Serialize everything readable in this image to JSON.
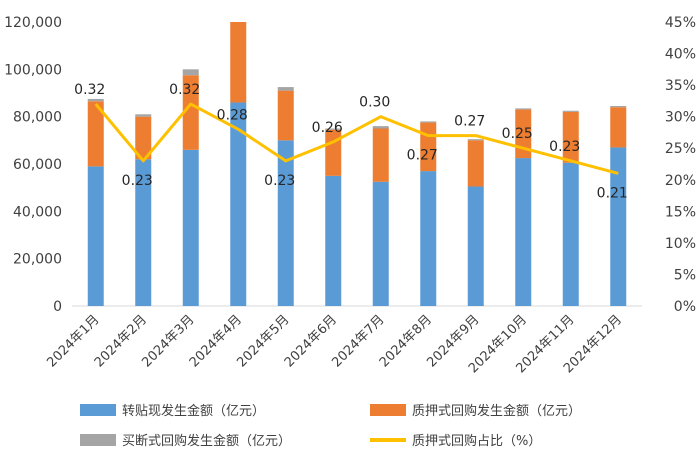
{
  "chart_data": {
    "type": "bar",
    "stacked": true,
    "categories": [
      "2024年1月",
      "2024年2月",
      "2024年3月",
      "2024年4月",
      "2024年5月",
      "2024年6月",
      "2024年7月",
      "2024年8月",
      "2024年9月",
      "2024年10月",
      "2024年11月",
      "2024年12月"
    ],
    "series": [
      {
        "name": "转贴现发生金额（亿元）",
        "color": "#5B9BD5",
        "axis": "left",
        "values": [
          59000,
          62000,
          66000,
          86000,
          70000,
          55000,
          52500,
          57000,
          50500,
          62500,
          60500,
          67000
        ]
      },
      {
        "name": "质押式回购发生金额（亿元）",
        "color": "#ED7D31",
        "axis": "left",
        "values": [
          27500,
          18000,
          31500,
          34000,
          21000,
          19500,
          22500,
          20500,
          19500,
          20500,
          21500,
          17000
        ]
      },
      {
        "name": "买断式回购发生金额（亿元）",
        "color": "#A5A5A5",
        "axis": "left",
        "values": [
          1000,
          1000,
          2500,
          0,
          1500,
          500,
          1000,
          500,
          500,
          500,
          500,
          500
        ]
      }
    ],
    "line_series": {
      "name": "质押式回购占比（%）",
      "color": "#FFC000",
      "axis": "right",
      "values": [
        32,
        23,
        32,
        28,
        23,
        26,
        30,
        27,
        27,
        25,
        23,
        21
      ],
      "labels": [
        "0.32",
        "0.23",
        "0.32",
        "0.28",
        "0.23",
        "0.26",
        "0.30",
        "0.27",
        "0.27",
        "0.25",
        "0.23",
        "0.21"
      ]
    },
    "y_left": {
      "min": 0,
      "max": 120000,
      "ticks": [
        "0",
        "20,000",
        "40,000",
        "60,000",
        "80,000",
        "100,000",
        "120,000"
      ]
    },
    "y_right": {
      "min": 0,
      "max": 45,
      "ticks": [
        "0%",
        "5%",
        "10%",
        "15%",
        "20%",
        "25%",
        "30%",
        "35%",
        "40%",
        "45%"
      ]
    },
    "legend_position": "bottom",
    "grid": false
  },
  "legend": [
    {
      "label": "转贴现发生金额（亿元）",
      "color": "#5B9BD5",
      "kind": "bar"
    },
    {
      "label": "质押式回购发生金额（亿元）",
      "color": "#ED7D31",
      "kind": "bar"
    },
    {
      "label": "买断式回购发生金额（亿元）",
      "color": "#A5A5A5",
      "kind": "bar"
    },
    {
      "label": "质押式回购占比（%）",
      "color": "#FFC000",
      "kind": "line"
    }
  ]
}
